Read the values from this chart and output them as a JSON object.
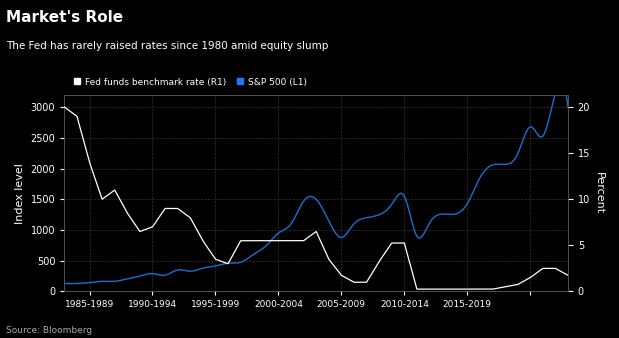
{
  "title": "Market's Role",
  "subtitle": "The Fed has rarely raised rates since 1980 amid equity slump",
  "source": "Source: Bloomberg",
  "legend": [
    {
      "label": "Fed funds benchmark rate (R1)",
      "color": "#ffffff"
    },
    {
      "label": "S&P 500 (L1)",
      "color": "#1f77ff"
    }
  ],
  "left_ylabel": "Index level",
  "right_ylabel": "Percent",
  "bg_color": "#000000",
  "text_color": "#ffffff",
  "grid_color": "#333333",
  "line1_color": "#ffffff",
  "line2_color": "#1a6fce",
  "xlim": [
    1980,
    2020
  ],
  "left_ylim": [
    0,
    3200
  ],
  "right_ylim": [
    0,
    21.3
  ],
  "xticks": [
    1984,
    1989,
    1994,
    1999,
    2004,
    2009,
    2014,
    2019
  ],
  "xticklabels": [
    "1985-1989",
    "1990-1994",
    "1995-1999",
    "2000-2004",
    "2005-2009",
    "2010-2014",
    "2015-2019",
    ""
  ],
  "left_yticks": [
    0,
    500,
    1000,
    1500,
    2000,
    2500,
    3000
  ],
  "right_yticks": [
    0,
    5,
    10,
    15,
    20
  ],
  "sp500": {
    "years": [
      1980,
      1981,
      1982,
      1983,
      1984,
      1985,
      1986,
      1987,
      1988,
      1989,
      1990,
      1991,
      1992,
      1993,
      1994,
      1995,
      1996,
      1997,
      1998,
      1999,
      2000,
      2001,
      2002,
      2003,
      2004,
      2005,
      2006,
      2007,
      2008,
      2009,
      2010,
      2011,
      2012,
      2013,
      2014,
      2015,
      2016,
      2017,
      2018,
      2019,
      2020
    ],
    "values": [
      130,
      130,
      145,
      165,
      165,
      205,
      250,
      290,
      265,
      350,
      330,
      380,
      415,
      460,
      475,
      600,
      740,
      950,
      1100,
      1470,
      1500,
      1150,
      880,
      1100,
      1200,
      1250,
      1420,
      1550,
      900,
      1115,
      1260,
      1260,
      1430,
      1850,
      2060,
      2070,
      2240,
      2680,
      2530,
      3230,
      3000
    ]
  },
  "fed_funds": {
    "years": [
      1980,
      1981,
      1982,
      1983,
      1984,
      1985,
      1986,
      1987,
      1988,
      1989,
      1990,
      1991,
      1992,
      1993,
      1994,
      1995,
      1996,
      1997,
      1998,
      1999,
      2000,
      2001,
      2002,
      2003,
      2004,
      2005,
      2006,
      2007,
      2008,
      2009,
      2010,
      2011,
      2012,
      2013,
      2014,
      2015,
      2016,
      2017,
      2018,
      2019,
      2020
    ],
    "values": [
      20,
      19,
      14,
      10,
      11,
      8.5,
      6.5,
      7,
      9,
      9,
      8,
      5.5,
      3.5,
      3,
      5.5,
      5.5,
      5.5,
      5.5,
      5.5,
      5.5,
      6.5,
      3.5,
      1.75,
      1.0,
      1.0,
      3.25,
      5.25,
      5.25,
      0.25,
      0.25,
      0.25,
      0.25,
      0.25,
      0.25,
      0.25,
      0.5,
      0.75,
      1.5,
      2.5,
      2.5,
      1.75
    ]
  }
}
